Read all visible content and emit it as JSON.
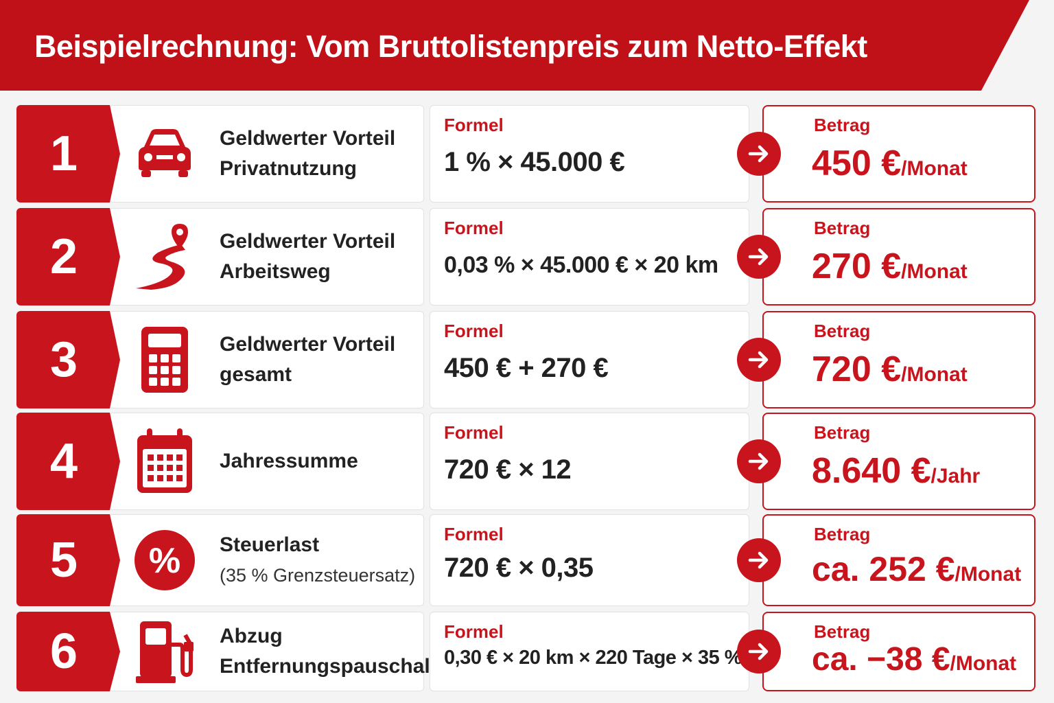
{
  "header": {
    "title": "Beispielrechnung: Vom Bruttolistenpreis zum Netto-Effekt"
  },
  "rows": [
    {
      "number": "1",
      "label": [
        "Geldwerter Vorteil",
        "Privatnutzung"
      ],
      "formula_label": "Formel",
      "formula": "1 % × 45.000 €",
      "amount_label": "Betrag",
      "amount": "450 €",
      "unit": "/Monat"
    },
    {
      "number": "2",
      "label": [
        "Geldwerter Vorteil",
        "Arbeitsweg"
      ],
      "formula_label": "Formel",
      "formula": "0,03 % × 45.000 € × 20 km",
      "amount_label": "Betrag",
      "amount": "270 €",
      "unit": "/Monat"
    },
    {
      "number": "3",
      "label": [
        "Geldwerter Vorteil",
        "gesamt"
      ],
      "formula_label": "Formel",
      "formula": "450 € + 270 €",
      "amount_label": "Betrag",
      "amount": "720 €",
      "unit": "/Monat"
    },
    {
      "number": "4",
      "label": [
        "Jahressumme"
      ],
      "formula_label": "Formel",
      "formula": "720 € × 12",
      "amount_label": "Betrag",
      "amount": "8.640 €",
      "unit": "/Jahr"
    },
    {
      "number": "5",
      "label": [
        "Steuerlast",
        "(35 % Grenzsteuersatz)"
      ],
      "formula_label": "Formel",
      "formula": "720 € × 0,35",
      "amount_label": "Betrag",
      "amount": "ca. 252 €",
      "unit": "/Monat"
    },
    {
      "number": "6",
      "label": [
        "Abzug",
        "Entfernungspauschale"
      ],
      "formula_label": "Formel",
      "formula": "0,30 € × 20 km × 220 Tage × 35 %",
      "amount_label": "Betrag",
      "amount": "ca. −38 €",
      "unit": "/Monat"
    }
  ]
}
